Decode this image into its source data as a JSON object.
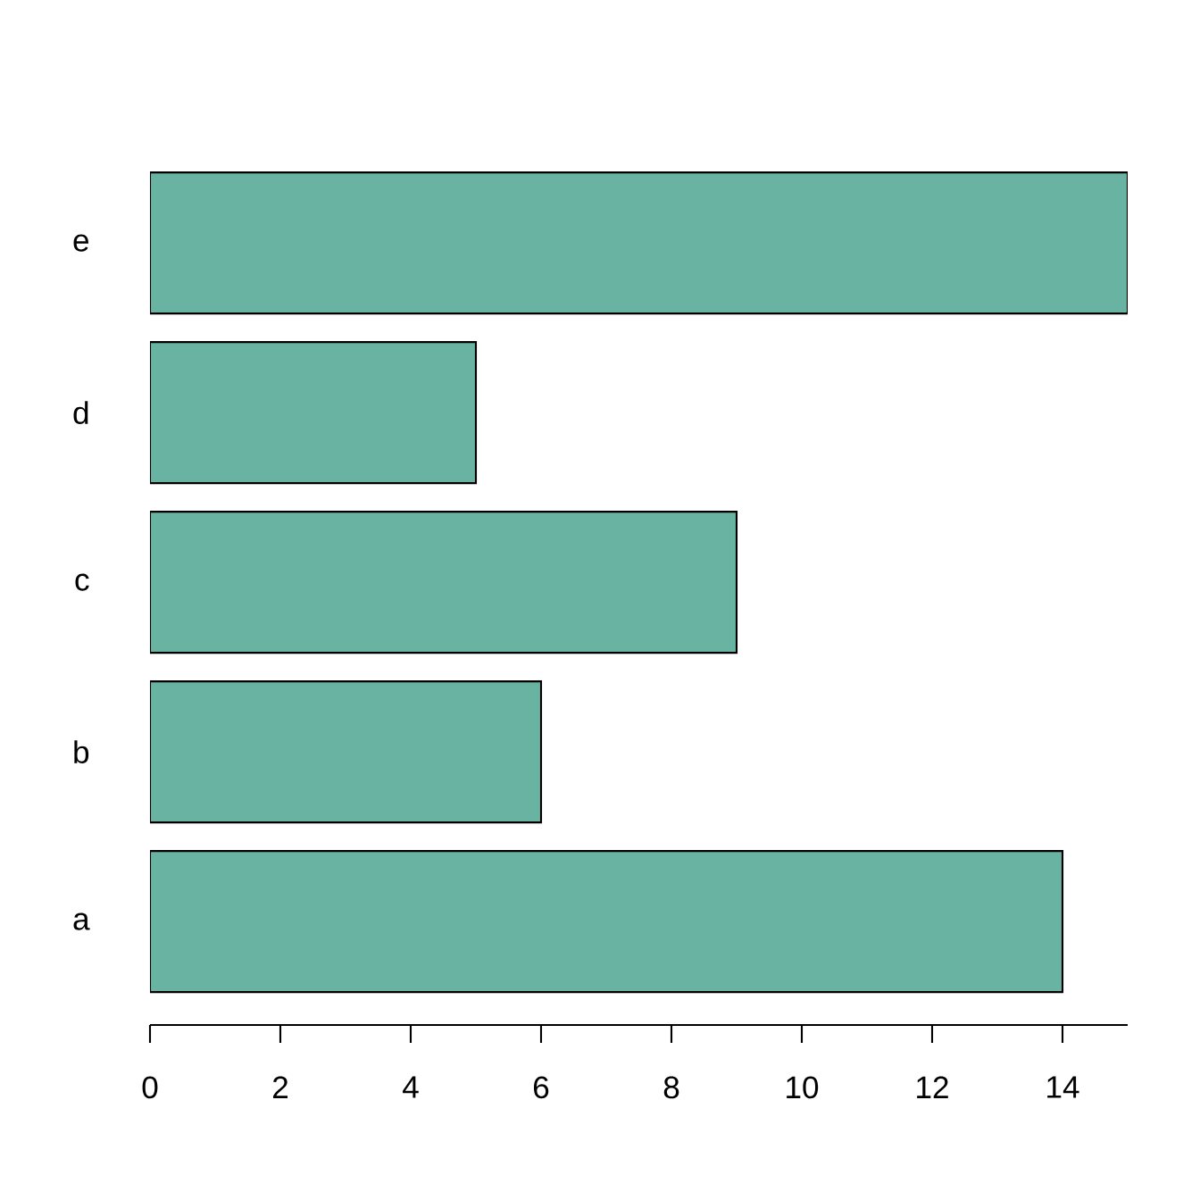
{
  "chart_data": {
    "type": "bar",
    "orientation": "horizontal",
    "categories": [
      "e",
      "d",
      "c",
      "b",
      "a"
    ],
    "values": [
      15,
      5,
      9,
      6,
      14
    ],
    "color": "#69b3a2",
    "xlim": [
      0,
      15
    ],
    "xticks": [
      0,
      2,
      4,
      6,
      8,
      10,
      12,
      14
    ]
  }
}
